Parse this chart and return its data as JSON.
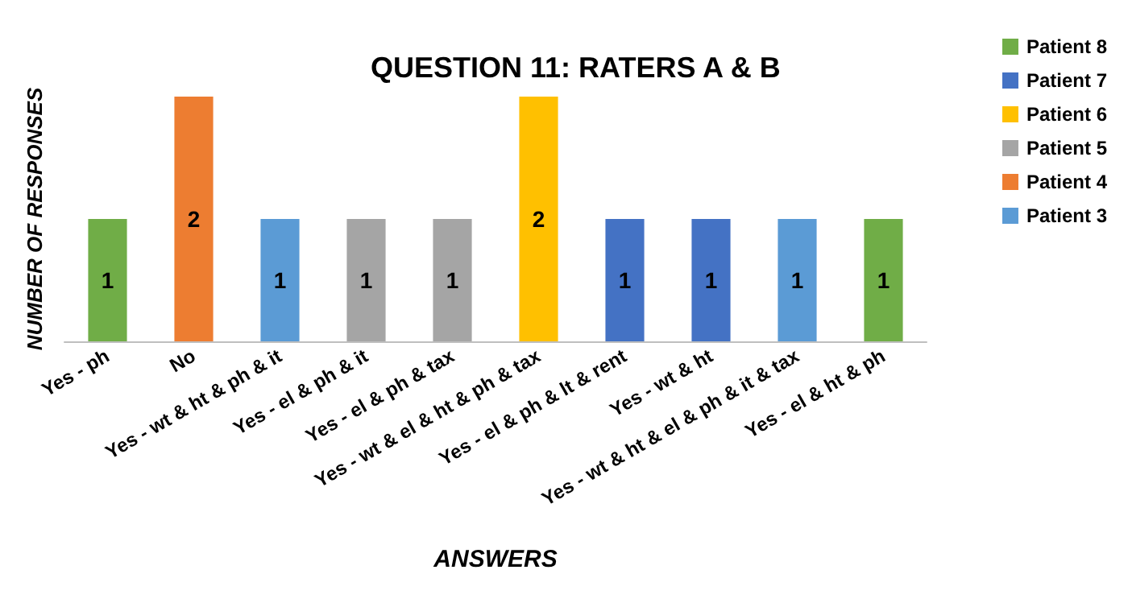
{
  "chart_data": {
    "type": "bar",
    "title": "QUESTION 11: RATERS A & B",
    "xlabel": "ANSWERS",
    "ylabel": "NUMBER OF RESPONSES",
    "categories": [
      "Yes - ph",
      "No",
      "Yes - wt & ht & ph & it",
      "Yes - el & ph & it",
      "Yes - el & ph & tax",
      "Yes - wt & el & ht & ph & tax",
      "Yes - el & ph & lt & rent",
      "Yes - wt & ht",
      "Yes - wt & ht & el & ph & it & tax",
      "Yes - el & ht & ph"
    ],
    "stacked": true,
    "data_labels": true,
    "legend": "right",
    "grid": false,
    "series": [
      {
        "name": "Patient 8",
        "color": "#70ad47",
        "values": [
          1,
          null,
          null,
          null,
          null,
          null,
          null,
          null,
          null,
          1
        ]
      },
      {
        "name": "Patient 7",
        "color": "#4472c4",
        "values": [
          null,
          null,
          null,
          null,
          null,
          null,
          1,
          1,
          null,
          null
        ]
      },
      {
        "name": "Patient 6",
        "color": "#ffc000",
        "values": [
          null,
          null,
          null,
          null,
          null,
          2,
          null,
          null,
          null,
          null
        ]
      },
      {
        "name": "Patient 5",
        "color": "#a5a5a5",
        "values": [
          null,
          null,
          null,
          1,
          1,
          null,
          null,
          null,
          null,
          null
        ]
      },
      {
        "name": "Patient 4",
        "color": "#ed7d31",
        "values": [
          null,
          2,
          null,
          null,
          null,
          null,
          null,
          null,
          null,
          null
        ]
      },
      {
        "name": "Patient 3",
        "color": "#5b9bd5",
        "values": [
          null,
          null,
          1,
          null,
          null,
          null,
          null,
          null,
          1,
          null
        ]
      }
    ]
  }
}
